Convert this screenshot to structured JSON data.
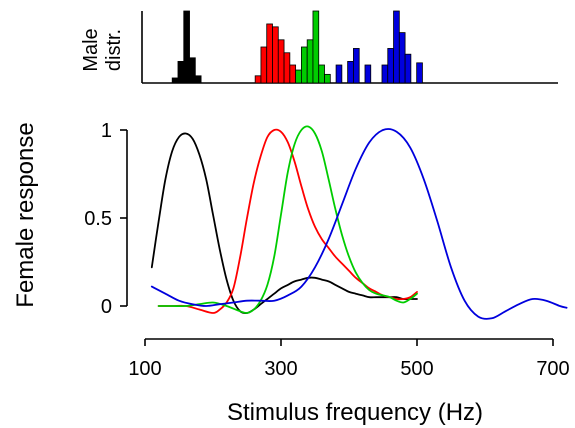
{
  "chart_data": [
    {
      "type": "bar",
      "ylabel_lines": [
        "Male",
        "distr."
      ],
      "xlim": [
        100,
        700
      ],
      "ylim": [
        0,
        1
      ],
      "grid": false,
      "series": [
        {
          "color": "#000000",
          "bin_width": 8.5,
          "bins": [
            {
              "x": 140,
              "count": 0.07
            },
            {
              "x": 148.5,
              "count": 0.3
            },
            {
              "x": 157,
              "count": 1.0
            },
            {
              "x": 165.5,
              "count": 0.35
            },
            {
              "x": 174,
              "count": 0.1
            }
          ]
        },
        {
          "color": "#ff0000",
          "bin_width": 8.5,
          "bins": [
            {
              "x": 262,
              "count": 0.1
            },
            {
              "x": 270.5,
              "count": 0.5
            },
            {
              "x": 279,
              "count": 0.82
            },
            {
              "x": 287.5,
              "count": 0.78
            },
            {
              "x": 296,
              "count": 0.6
            },
            {
              "x": 304.5,
              "count": 0.42
            },
            {
              "x": 313,
              "count": 0.25
            }
          ]
        },
        {
          "color": "#00cc00",
          "bin_width": 8.5,
          "bins": [
            {
              "x": 321.5,
              "count": 0.18
            },
            {
              "x": 330,
              "count": 0.5
            },
            {
              "x": 338.5,
              "count": 0.6
            },
            {
              "x": 347,
              "count": 1.0
            },
            {
              "x": 355.5,
              "count": 0.25
            },
            {
              "x": 364,
              "count": 0.12
            }
          ]
        },
        {
          "color": "#0000dd",
          "bin_width": 8.5,
          "bins": [
            {
              "x": 381,
              "count": 0.25
            },
            {
              "x": 398,
              "count": 0.3
            },
            {
              "x": 406.5,
              "count": 0.48
            },
            {
              "x": 423.5,
              "count": 0.25
            },
            {
              "x": 448.5,
              "count": 0.25
            },
            {
              "x": 457,
              "count": 0.48
            },
            {
              "x": 465.5,
              "count": 1.0
            },
            {
              "x": 474,
              "count": 0.7
            },
            {
              "x": 482.5,
              "count": 0.4
            },
            {
              "x": 499.5,
              "count": 0.28
            }
          ]
        }
      ]
    },
    {
      "type": "line",
      "xlabel": "Stimulus frequency (Hz)",
      "ylabel": "Female response",
      "xlim": [
        100,
        700
      ],
      "ylim": [
        -0.08,
        1.08
      ],
      "xticks": [
        100,
        300,
        500,
        700
      ],
      "yticks": [
        0,
        0.5,
        1
      ],
      "ytick_labels": [
        "0",
        "0.5",
        "1"
      ],
      "grid": false,
      "series": [
        {
          "color": "#000000",
          "x": [
            110,
            120,
            130,
            140,
            150,
            160,
            170,
            180,
            190,
            200,
            210,
            220,
            230,
            240,
            250,
            260,
            270,
            280,
            290,
            300,
            310,
            320,
            330,
            340,
            350,
            360,
            370,
            380,
            390,
            400,
            410,
            420,
            430,
            440,
            450,
            460,
            470,
            480,
            490,
            500
          ],
          "y": [
            0.22,
            0.48,
            0.72,
            0.88,
            0.96,
            0.98,
            0.95,
            0.86,
            0.72,
            0.52,
            0.32,
            0.15,
            0.03,
            -0.03,
            -0.04,
            -0.02,
            0.01,
            0.04,
            0.07,
            0.1,
            0.12,
            0.14,
            0.15,
            0.16,
            0.16,
            0.15,
            0.14,
            0.12,
            0.1,
            0.08,
            0.07,
            0.06,
            0.05,
            0.05,
            0.05,
            0.05,
            0.05,
            0.04,
            0.04,
            0.04
          ]
        },
        {
          "color": "#ff0000",
          "x": [
            120,
            140,
            160,
            180,
            200,
            210,
            220,
            230,
            240,
            250,
            260,
            270,
            280,
            290,
            300,
            310,
            320,
            330,
            340,
            350,
            360,
            370,
            380,
            390,
            400,
            410,
            420,
            430,
            440,
            450,
            460,
            470,
            480,
            490,
            500
          ],
          "y": [
            0.0,
            0.0,
            0.0,
            -0.02,
            -0.04,
            -0.02,
            0.02,
            0.1,
            0.28,
            0.5,
            0.7,
            0.85,
            0.96,
            1.0,
            0.99,
            0.93,
            0.82,
            0.68,
            0.55,
            0.45,
            0.38,
            0.33,
            0.28,
            0.24,
            0.2,
            0.16,
            0.13,
            0.1,
            0.08,
            0.06,
            0.05,
            0.04,
            0.04,
            0.05,
            0.08
          ]
        },
        {
          "color": "#00cc00",
          "x": [
            120,
            140,
            160,
            180,
            200,
            220,
            240,
            250,
            260,
            270,
            280,
            290,
            300,
            310,
            320,
            330,
            340,
            350,
            360,
            370,
            380,
            390,
            400,
            410,
            420,
            430,
            440,
            450,
            460,
            470,
            480,
            490,
            500
          ],
          "y": [
            0.0,
            0.0,
            0.0,
            0.01,
            0.02,
            0.0,
            -0.03,
            -0.04,
            -0.02,
            0.03,
            0.12,
            0.28,
            0.52,
            0.76,
            0.92,
            1.0,
            1.02,
            0.98,
            0.88,
            0.72,
            0.55,
            0.4,
            0.28,
            0.19,
            0.13,
            0.09,
            0.07,
            0.06,
            0.05,
            0.03,
            0.02,
            0.04,
            0.07
          ]
        },
        {
          "color": "#0000dd",
          "x": [
            110,
            130,
            150,
            170,
            190,
            210,
            230,
            250,
            270,
            290,
            310,
            330,
            350,
            370,
            390,
            410,
            430,
            450,
            470,
            490,
            510,
            530,
            550,
            570,
            590,
            610,
            630,
            650,
            670,
            690,
            710,
            720
          ],
          "y": [
            0.11,
            0.07,
            0.03,
            0.01,
            0.0,
            0.01,
            0.02,
            0.03,
            0.03,
            0.03,
            0.06,
            0.11,
            0.22,
            0.38,
            0.58,
            0.78,
            0.93,
            1.0,
            0.99,
            0.9,
            0.72,
            0.48,
            0.22,
            0.03,
            -0.06,
            -0.07,
            -0.03,
            0.01,
            0.04,
            0.03,
            0.0,
            -0.01
          ]
        }
      ]
    }
  ]
}
